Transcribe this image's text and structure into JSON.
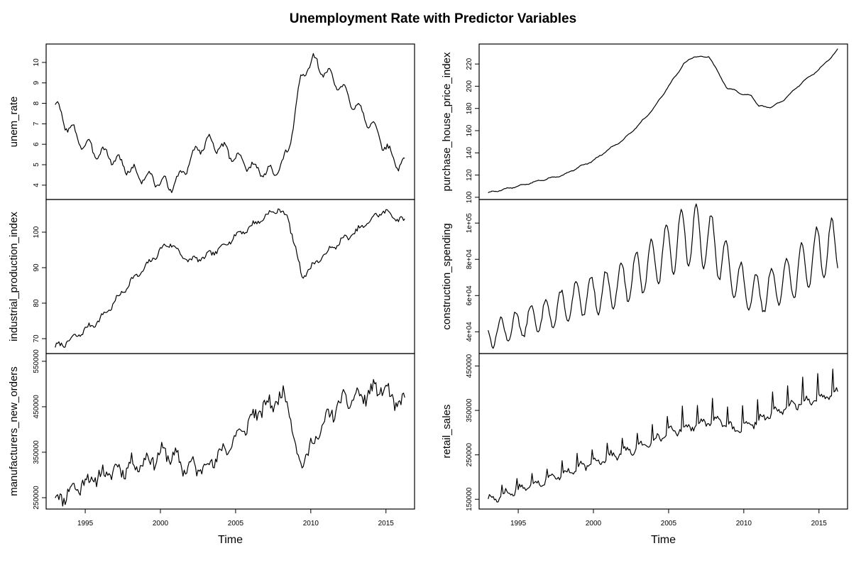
{
  "title": "Unemployment Rate with Predictor Variables",
  "line_color": "#000000",
  "chart_data": [
    {
      "type": "line",
      "column": "left",
      "ylabel": "unem_rate",
      "xlabel": "Time",
      "xlim": [
        1992.4,
        2016.9
      ],
      "ylim": [
        3.3,
        10.9
      ],
      "xticks": [
        1995,
        2000,
        2005,
        2010,
        2015
      ],
      "yticks": [
        4,
        5,
        6,
        7,
        8,
        9,
        10
      ],
      "ytick_labels": [
        "4",
        "5",
        "6",
        "7",
        "8",
        "9",
        "10"
      ],
      "start": 1993.0,
      "freq": 12,
      "seasonal_amp": 0.3,
      "seasonal_phase": 0.0,
      "noise": 0.12,
      "noise_seed": 3,
      "anchors": [
        [
          1993.0,
          8.0
        ],
        [
          1993.5,
          7.2
        ],
        [
          1994.0,
          6.8
        ],
        [
          1994.6,
          6.2
        ],
        [
          1995.5,
          5.7
        ],
        [
          1996.5,
          5.5
        ],
        [
          1997.5,
          5.0
        ],
        [
          1998.5,
          4.5
        ],
        [
          1999.5,
          4.3
        ],
        [
          2000.5,
          4.0
        ],
        [
          2001.0,
          4.1
        ],
        [
          2001.5,
          4.6
        ],
        [
          2002.3,
          5.6
        ],
        [
          2003.0,
          6.1
        ],
        [
          2003.5,
          6.1
        ],
        [
          2004.0,
          5.8
        ],
        [
          2005.0,
          5.4
        ],
        [
          2006.0,
          4.9
        ],
        [
          2007.0,
          4.6
        ],
        [
          2007.5,
          4.6
        ],
        [
          2008.0,
          4.9
        ],
        [
          2008.5,
          5.6
        ],
        [
          2009.0,
          7.8
        ],
        [
          2009.3,
          9.0
        ],
        [
          2009.8,
          9.9
        ],
        [
          2010.2,
          10.1
        ],
        [
          2010.8,
          9.6
        ],
        [
          2011.5,
          9.2
        ],
        [
          2012.5,
          8.3
        ],
        [
          2013.5,
          7.5
        ],
        [
          2014.5,
          6.4
        ],
        [
          2015.3,
          5.5
        ],
        [
          2015.8,
          5.0
        ],
        [
          2016.25,
          5.1
        ]
      ]
    },
    {
      "type": "line",
      "column": "left",
      "ylabel": "industrial_production_index",
      "xlabel": "Time",
      "xlim": [
        1992.4,
        2016.9
      ],
      "ylim": [
        65.8,
        109.2
      ],
      "xticks": [
        1995,
        2000,
        2005,
        2010,
        2015
      ],
      "yticks": [
        70,
        80,
        90,
        100
      ],
      "ytick_labels": [
        "70",
        "80",
        "90",
        "100"
      ],
      "start": 1993.0,
      "freq": 12,
      "seasonal_amp": 0.7,
      "seasonal_phase": 0.5,
      "noise": 0.6,
      "noise_seed": 7,
      "anchors": [
        [
          1993.0,
          67.5
        ],
        [
          1994.0,
          69.5
        ],
        [
          1995.0,
          72.5
        ],
        [
          1996.0,
          75.5
        ],
        [
          1997.0,
          80.5
        ],
        [
          1998.0,
          86.0
        ],
        [
          1999.0,
          90.0
        ],
        [
          2000.0,
          95.0
        ],
        [
          2000.7,
          97.0
        ],
        [
          2001.5,
          93.0
        ],
        [
          2002.0,
          92.0
        ],
        [
          2003.0,
          93.0
        ],
        [
          2004.0,
          95.5
        ],
        [
          2005.0,
          99.0
        ],
        [
          2006.0,
          101.5
        ],
        [
          2007.0,
          104.5
        ],
        [
          2007.8,
          106.5
        ],
        [
          2008.5,
          104.0
        ],
        [
          2009.0,
          95.0
        ],
        [
          2009.4,
          87.5
        ],
        [
          2010.0,
          90.0
        ],
        [
          2011.0,
          94.0
        ],
        [
          2012.0,
          97.5
        ],
        [
          2013.0,
          100.0
        ],
        [
          2014.0,
          103.5
        ],
        [
          2014.8,
          106.0
        ],
        [
          2015.5,
          104.5
        ],
        [
          2016.25,
          103.0
        ]
      ]
    },
    {
      "type": "line",
      "column": "left",
      "ylabel": "manufacturers_new_orders",
      "xlabel": "Time",
      "xlim": [
        1992.4,
        2016.9
      ],
      "ylim": [
        225000,
        567000
      ],
      "xticks": [
        1995,
        2000,
        2005,
        2010,
        2015
      ],
      "yticks": [
        250000,
        350000,
        450000,
        550000
      ],
      "ytick_labels": [
        "250000",
        "350000",
        "450000",
        "550000"
      ],
      "start": 1993.0,
      "freq": 12,
      "seasonal_amp": 14000,
      "seasonal_phase": 1.0,
      "noise": 14000,
      "noise_seed": 11,
      "anchors": [
        [
          1993.0,
          245000
        ],
        [
          1995.0,
          285000
        ],
        [
          1997.0,
          310000
        ],
        [
          1999.0,
          330000
        ],
        [
          2000.5,
          350000
        ],
        [
          2001.5,
          320000
        ],
        [
          2002.5,
          315000
        ],
        [
          2003.5,
          330000
        ],
        [
          2005.0,
          380000
        ],
        [
          2006.5,
          440000
        ],
        [
          2008.0,
          470000
        ],
        [
          2008.5,
          470000
        ],
        [
          2008.9,
          380000
        ],
        [
          2009.2,
          320000
        ],
        [
          2010.0,
          360000
        ],
        [
          2011.0,
          420000
        ],
        [
          2012.0,
          460000
        ],
        [
          2014.0,
          480000
        ],
        [
          2014.5,
          495000
        ],
        [
          2015.3,
          475000
        ],
        [
          2016.0,
          445000
        ],
        [
          2016.25,
          475000
        ]
      ]
    },
    {
      "type": "line",
      "column": "right",
      "ylabel": "purchase_house_price_index",
      "xlabel": "Time",
      "xlim": [
        1992.4,
        2016.9
      ],
      "ylim": [
        98,
        238
      ],
      "xticks": [
        1995,
        2000,
        2005,
        2010,
        2015
      ],
      "yticks": [
        100,
        120,
        140,
        160,
        180,
        200,
        220
      ],
      "ytick_labels": [
        "100",
        "120",
        "140",
        "160",
        "180",
        "200",
        "220"
      ],
      "start": 1993.0,
      "freq": 12,
      "seasonal_amp": 0.6,
      "seasonal_phase": 0.3,
      "noise": 0.3,
      "noise_seed": 5,
      "anchors": [
        [
          1993.0,
          104
        ],
        [
          1995.0,
          110
        ],
        [
          1997.0,
          117
        ],
        [
          1998.0,
          120
        ],
        [
          1999.0,
          127
        ],
        [
          2000.0,
          133
        ],
        [
          2001.0,
          143
        ],
        [
          2002.0,
          152
        ],
        [
          2003.0,
          165
        ],
        [
          2004.0,
          180
        ],
        [
          2005.0,
          200
        ],
        [
          2006.0,
          220
        ],
        [
          2006.7,
          227
        ],
        [
          2007.3,
          226
        ],
        [
          2007.7,
          227
        ],
        [
          2008.3,
          212
        ],
        [
          2008.9,
          198
        ],
        [
          2009.5,
          196
        ],
        [
          2010.0,
          192
        ],
        [
          2010.5,
          192
        ],
        [
          2011.0,
          182
        ],
        [
          2011.8,
          181
        ],
        [
          2012.5,
          186
        ],
        [
          2013.0,
          192
        ],
        [
          2014.0,
          205
        ],
        [
          2015.0,
          215
        ],
        [
          2015.5,
          222
        ],
        [
          2016.0,
          229
        ],
        [
          2016.25,
          233
        ]
      ]
    },
    {
      "type": "line",
      "column": "right",
      "ylabel": "construction_spending",
      "xlabel": "Time",
      "xlim": [
        1992.4,
        2016.9
      ],
      "ylim": [
        28000,
        113000
      ],
      "xticks": [
        1995,
        2000,
        2005,
        2010,
        2015
      ],
      "yticks": [
        40000,
        60000,
        80000,
        100000
      ],
      "ytick_labels": [
        "4e+04",
        "6e+04",
        "8e+04",
        "1e+05"
      ],
      "start": 1993.0,
      "freq": 12,
      "seasonal_amp_frac": 0.18,
      "seasonal_phase": 2.6,
      "noise": 1200,
      "noise_seed": 13,
      "anchors": [
        [
          1993.0,
          38000
        ],
        [
          1995.0,
          44000
        ],
        [
          1997.0,
          50000
        ],
        [
          1999.0,
          58000
        ],
        [
          2001.0,
          63000
        ],
        [
          2003.0,
          72000
        ],
        [
          2004.5,
          82000
        ],
        [
          2006.0,
          93000
        ],
        [
          2007.0,
          93000
        ],
        [
          2008.0,
          88000
        ],
        [
          2009.0,
          75000
        ],
        [
          2010.0,
          64000
        ],
        [
          2011.0,
          60000
        ],
        [
          2012.0,
          65000
        ],
        [
          2013.5,
          72000
        ],
        [
          2015.0,
          84000
        ],
        [
          2016.25,
          88000
        ]
      ]
    },
    {
      "type": "line",
      "column": "right",
      "ylabel": "retail_sales",
      "xlabel": "Time",
      "xlim": [
        1992.4,
        2016.9
      ],
      "ylim": [
        128000,
        478000
      ],
      "xticks": [
        1995,
        2000,
        2005,
        2010,
        2015
      ],
      "yticks": [
        150000,
        250000,
        350000,
        450000
      ],
      "ytick_labels": [
        "150000",
        "250000",
        "350000",
        "450000"
      ],
      "start": 1993.0,
      "freq": 12,
      "seasonal_amp": 8000,
      "seasonal_phase": 0.8,
      "noise": 6000,
      "noise_seed": 17,
      "december_spike": 0.14,
      "anchors": [
        [
          1993.0,
          148000
        ],
        [
          1995.0,
          172000
        ],
        [
          1997.0,
          195000
        ],
        [
          1999.0,
          220000
        ],
        [
          2001.0,
          245000
        ],
        [
          2003.0,
          265000
        ],
        [
          2005.0,
          300000
        ],
        [
          2007.0,
          320000
        ],
        [
          2008.5,
          330000
        ],
        [
          2009.3,
          305000
        ],
        [
          2010.0,
          310000
        ],
        [
          2012.0,
          345000
        ],
        [
          2014.0,
          370000
        ],
        [
          2016.0,
          385000
        ],
        [
          2016.25,
          390000
        ]
      ]
    }
  ]
}
